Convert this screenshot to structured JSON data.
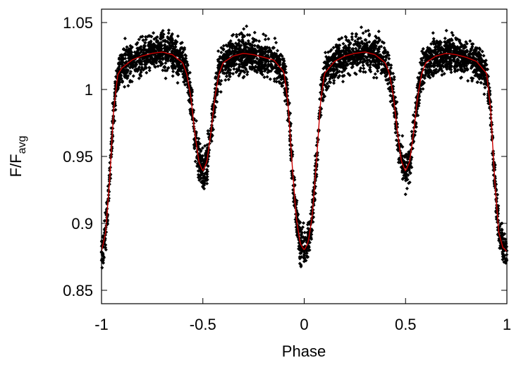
{
  "chart_data": {
    "type": "scatter",
    "title": "",
    "xlabel": "Phase",
    "ylabel": "F/F",
    "ylabel_sub": "avg",
    "xlim": [
      -1,
      1
    ],
    "ylim": [
      0.84,
      1.06
    ],
    "xticks": [
      -1,
      -0.5,
      0,
      0.5,
      1
    ],
    "xtick_labels": [
      "-1",
      "-0.5",
      "0",
      "0.5",
      "1"
    ],
    "yticks": [
      0.85,
      0.9,
      0.95,
      1,
      1.05
    ],
    "ytick_labels": [
      "0.85",
      "0.9",
      "0.95",
      "1",
      "1.05"
    ],
    "grid": false,
    "legend": "none",
    "colors": {
      "points": "#000000",
      "fit": "#cc0000"
    },
    "series": [
      {
        "kind": "points",
        "description_scatter_scale": 0.007,
        "x": [
          -1.0,
          -0.98,
          -0.96,
          -0.94,
          -0.92,
          -0.9,
          -0.85,
          -0.8,
          -0.75,
          -0.7,
          -0.65,
          -0.6,
          -0.58,
          -0.56,
          -0.54,
          -0.52,
          -0.5,
          -0.48,
          -0.46,
          -0.44,
          -0.42,
          -0.4,
          -0.35,
          -0.3,
          -0.25,
          -0.2,
          -0.15,
          -0.1,
          -0.08,
          -0.06,
          -0.04,
          -0.02,
          0.0,
          0.02,
          0.04,
          0.06,
          0.08,
          0.1,
          0.15,
          0.2,
          0.25,
          0.3,
          0.35,
          0.4,
          0.42,
          0.44,
          0.46,
          0.48,
          0.5,
          0.52,
          0.54,
          0.56,
          0.58,
          0.6,
          0.65,
          0.7,
          0.75,
          0.8,
          0.85,
          0.9,
          0.92,
          0.94,
          0.96,
          0.98,
          1.0
        ],
        "y": [
          0.879,
          0.893,
          0.932,
          0.985,
          1.011,
          1.016,
          1.022,
          1.025,
          1.027,
          1.028,
          1.026,
          1.02,
          1.012,
          0.995,
          0.968,
          0.946,
          0.939,
          0.946,
          0.968,
          0.995,
          1.012,
          1.02,
          1.025,
          1.027,
          1.026,
          1.024,
          1.022,
          1.013,
          0.99,
          0.945,
          0.905,
          0.885,
          0.88,
          0.886,
          0.906,
          0.945,
          0.99,
          1.012,
          1.021,
          1.025,
          1.027,
          1.028,
          1.026,
          1.02,
          1.012,
          0.995,
          0.968,
          0.946,
          0.939,
          0.946,
          0.968,
          0.995,
          1.012,
          1.02,
          1.025,
          1.027,
          1.026,
          1.024,
          1.021,
          1.012,
          0.985,
          0.932,
          0.893,
          0.882,
          0.879
        ]
      },
      {
        "kind": "line",
        "x": [
          -1.0,
          -0.98,
          -0.96,
          -0.94,
          -0.92,
          -0.9,
          -0.85,
          -0.8,
          -0.75,
          -0.7,
          -0.65,
          -0.6,
          -0.58,
          -0.56,
          -0.54,
          -0.52,
          -0.5,
          -0.48,
          -0.46,
          -0.44,
          -0.42,
          -0.4,
          -0.35,
          -0.3,
          -0.25,
          -0.2,
          -0.15,
          -0.1,
          -0.08,
          -0.06,
          -0.04,
          -0.02,
          0.0,
          0.02,
          0.04,
          0.06,
          0.08,
          0.1,
          0.15,
          0.2,
          0.25,
          0.3,
          0.35,
          0.4,
          0.42,
          0.44,
          0.46,
          0.48,
          0.5,
          0.52,
          0.54,
          0.56,
          0.58,
          0.6,
          0.65,
          0.7,
          0.75,
          0.8,
          0.85,
          0.9,
          0.92,
          0.94,
          0.96,
          0.98,
          1.0
        ],
        "y": [
          0.879,
          0.893,
          0.932,
          0.985,
          1.011,
          1.016,
          1.022,
          1.025,
          1.027,
          1.028,
          1.026,
          1.02,
          1.012,
          0.995,
          0.968,
          0.946,
          0.939,
          0.946,
          0.968,
          0.995,
          1.012,
          1.02,
          1.025,
          1.027,
          1.026,
          1.024,
          1.022,
          1.013,
          0.99,
          0.945,
          0.905,
          0.885,
          0.88,
          0.886,
          0.906,
          0.945,
          0.99,
          1.012,
          1.021,
          1.025,
          1.027,
          1.028,
          1.026,
          1.02,
          1.012,
          0.995,
          0.968,
          0.946,
          0.939,
          0.946,
          0.968,
          0.995,
          1.012,
          1.02,
          1.025,
          1.027,
          1.026,
          1.024,
          1.021,
          1.012,
          0.985,
          0.932,
          0.893,
          0.882,
          0.879
        ]
      }
    ]
  }
}
